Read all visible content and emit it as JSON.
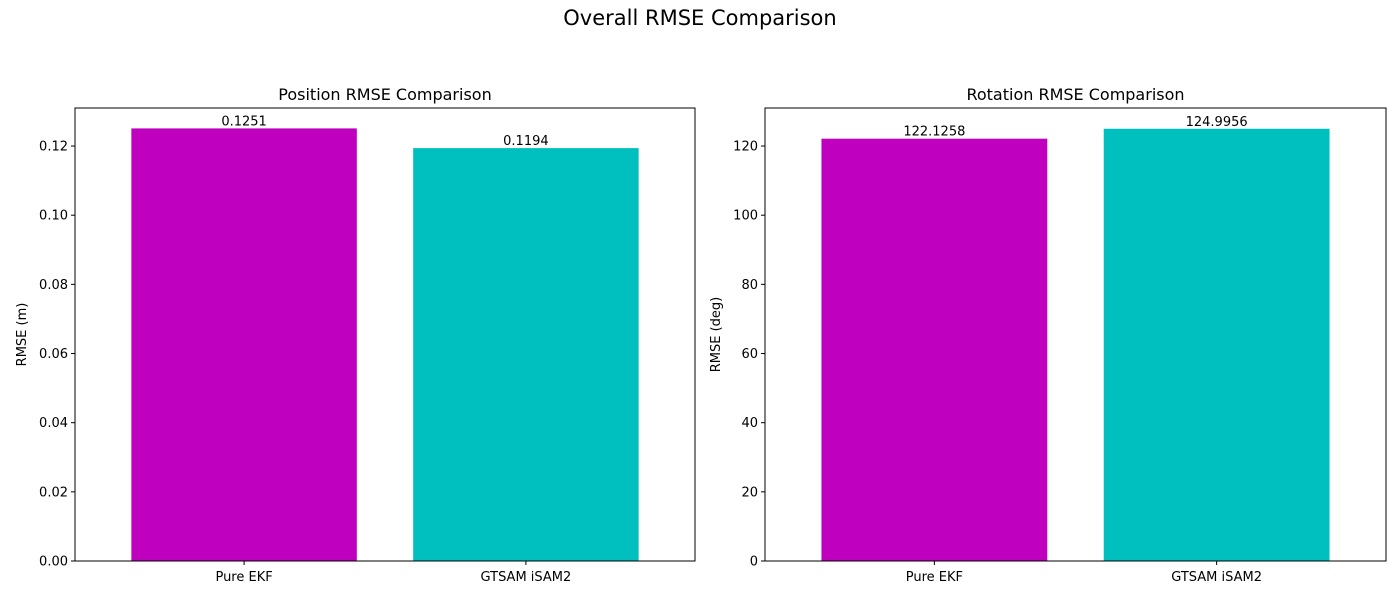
{
  "figure_title": "Overall RMSE Comparison",
  "colors": {
    "Pure EKF": "#bf00bf",
    "GTSAM iSAM2": "#00bfbf"
  },
  "chart_data": [
    {
      "type": "bar",
      "title": "Position RMSE Comparison",
      "xlabel": "",
      "ylabel": "RMSE (m)",
      "categories": [
        "Pure EKF",
        "GTSAM iSAM2"
      ],
      "values": [
        0.1251,
        0.1194
      ],
      "value_labels": [
        "0.1251",
        "0.1194"
      ],
      "ylim": [
        0,
        0.131
      ],
      "yticks": [
        0.0,
        0.02,
        0.04,
        0.06,
        0.08,
        0.1,
        0.12
      ],
      "ytick_labels": [
        "0.00",
        "0.02",
        "0.04",
        "0.06",
        "0.08",
        "0.10",
        "0.12"
      ],
      "grid": false,
      "legend": false
    },
    {
      "type": "bar",
      "title": "Rotation RMSE Comparison",
      "xlabel": "",
      "ylabel": "RMSE (deg)",
      "categories": [
        "Pure EKF",
        "GTSAM iSAM2"
      ],
      "values": [
        122.1258,
        124.9956
      ],
      "value_labels": [
        "122.1258",
        "124.9956"
      ],
      "ylim": [
        0,
        131
      ],
      "yticks": [
        0,
        20,
        40,
        60,
        80,
        100,
        120
      ],
      "ytick_labels": [
        "0",
        "20",
        "40",
        "60",
        "80",
        "100",
        "120"
      ],
      "grid": false,
      "legend": false
    }
  ]
}
